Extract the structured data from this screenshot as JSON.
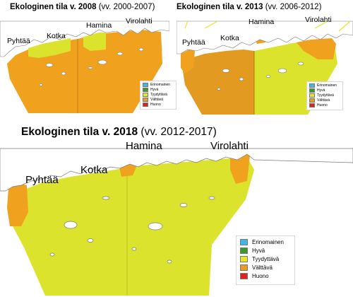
{
  "maps": [
    {
      "title_bold": "Ekologinen tila v. 2008",
      "title_period": "(vv. 2000-2007)",
      "places": [
        "Pyhtää",
        "Kotka",
        "Hamina",
        "Virolahti"
      ]
    },
    {
      "title_bold": "Ekologinen tila v. 2013",
      "title_period": "(vv. 2006-2012)",
      "places": [
        "Pyhtää",
        "Kotka",
        "Hamina",
        "Virolahti"
      ]
    },
    {
      "title_bold": "Ekologinen tila v. 2018",
      "title_period": "(vv. 2012-2017)",
      "places": [
        "Pyhtää",
        "Kotka",
        "Hamina",
        "Virolahti"
      ]
    }
  ],
  "legend": [
    {
      "label": "Erinomainen",
      "color": "#3fb7e8"
    },
    {
      "label": "Hyvä",
      "color": "#3a9a2c"
    },
    {
      "label": "Tyydyttävä",
      "color": "#e6e62a"
    },
    {
      "label": "Välttävä",
      "color": "#ec9a22"
    },
    {
      "label": "Huono",
      "color": "#e3201c"
    }
  ],
  "colors": {
    "sea_orange": "#f0a21e",
    "sea_orange_dark": "#e39a20",
    "sea_yellow": "#dbe32c",
    "land": "#ffffff",
    "outline": "#7a7a7a"
  }
}
